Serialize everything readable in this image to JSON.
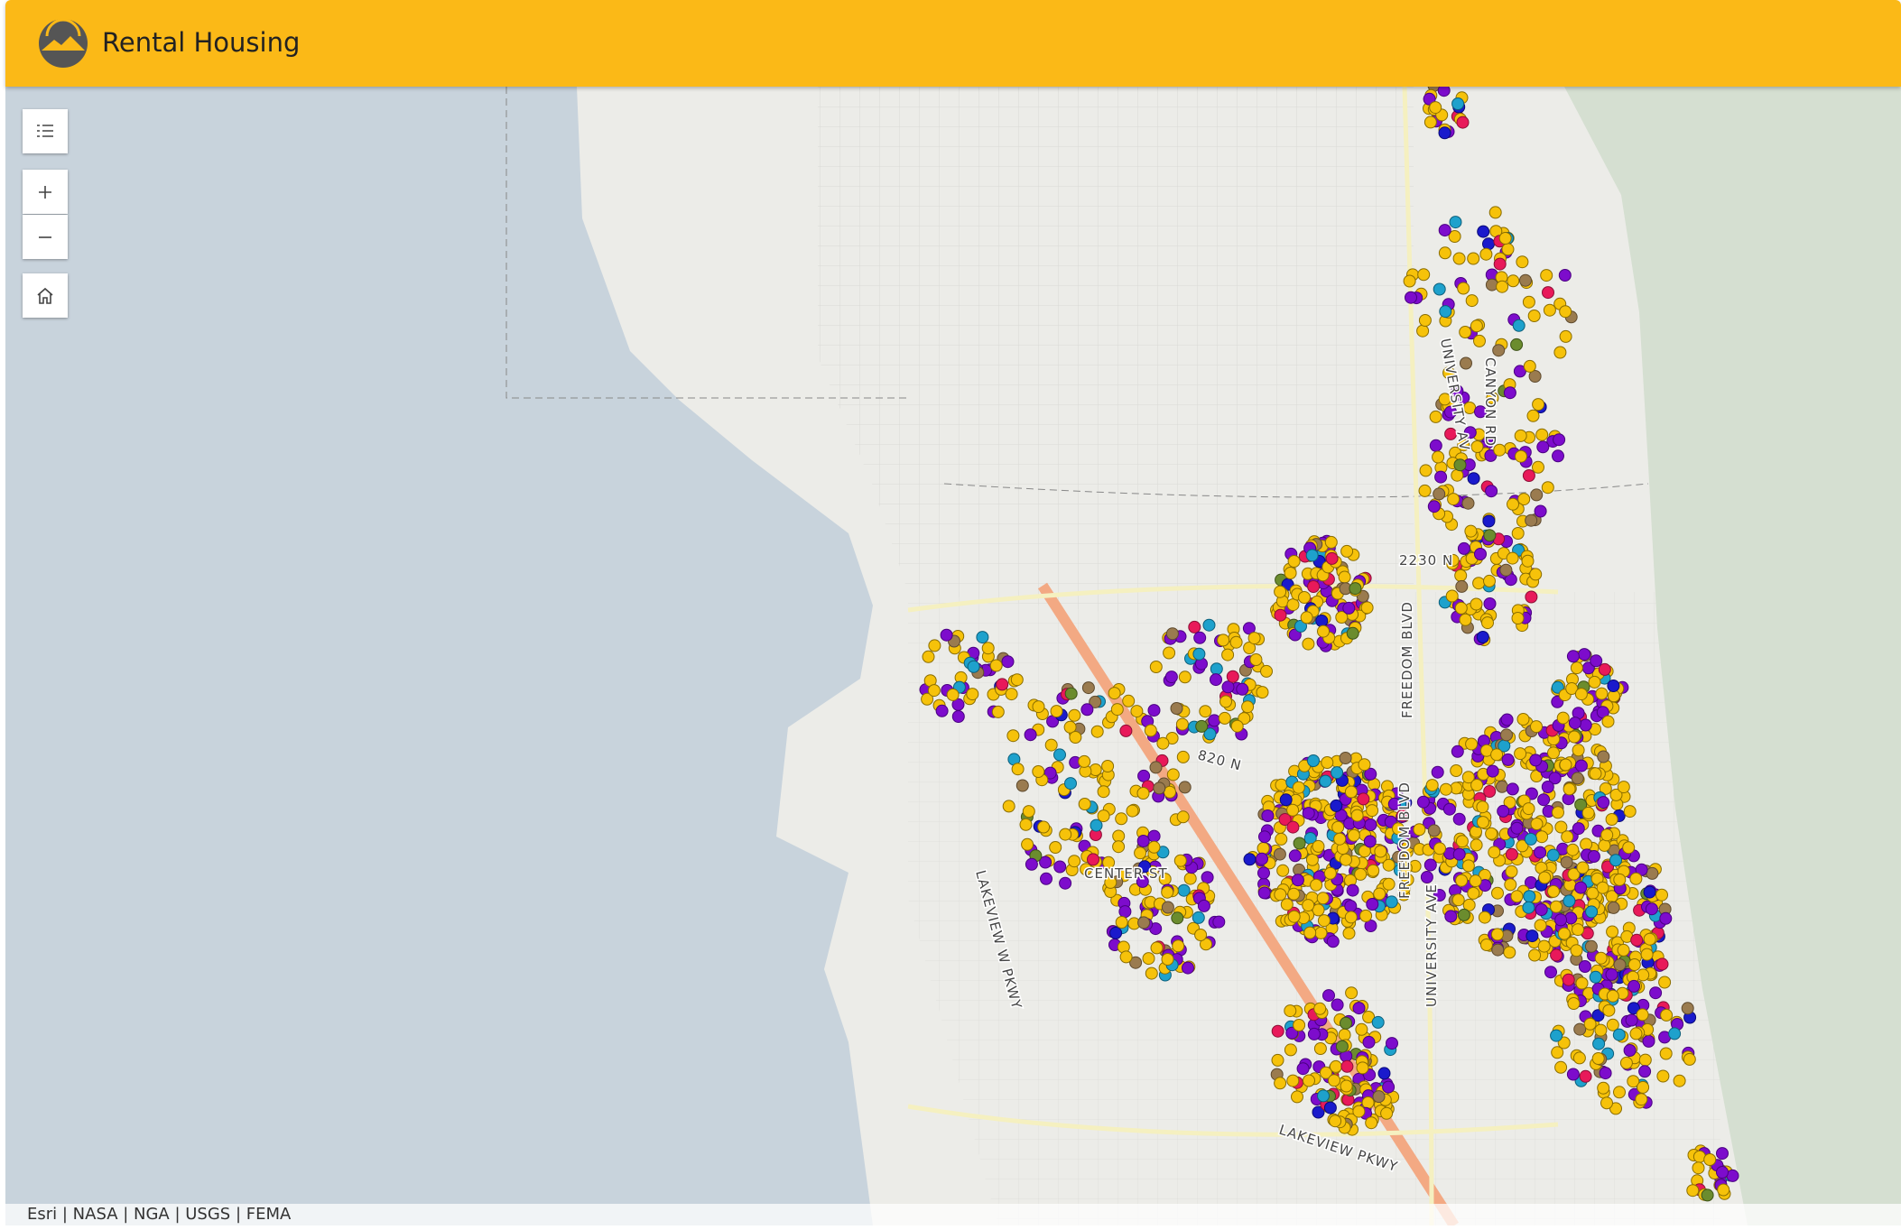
{
  "header": {
    "title": "Rental Housing"
  },
  "map": {
    "road_labels": [
      "2230 N",
      "820 N",
      "UNIVERSITY AV",
      "CANYON RD",
      "FREEDOM BLVD",
      "FREEDOM BLVD",
      "UNIVERSITY AVE",
      "LAKEVIEW W PKWY",
      "CENTER ST",
      "LAKEVIEW PKWY"
    ],
    "attribution": "Esri | NASA | NGA | USGS | FEMA"
  }
}
